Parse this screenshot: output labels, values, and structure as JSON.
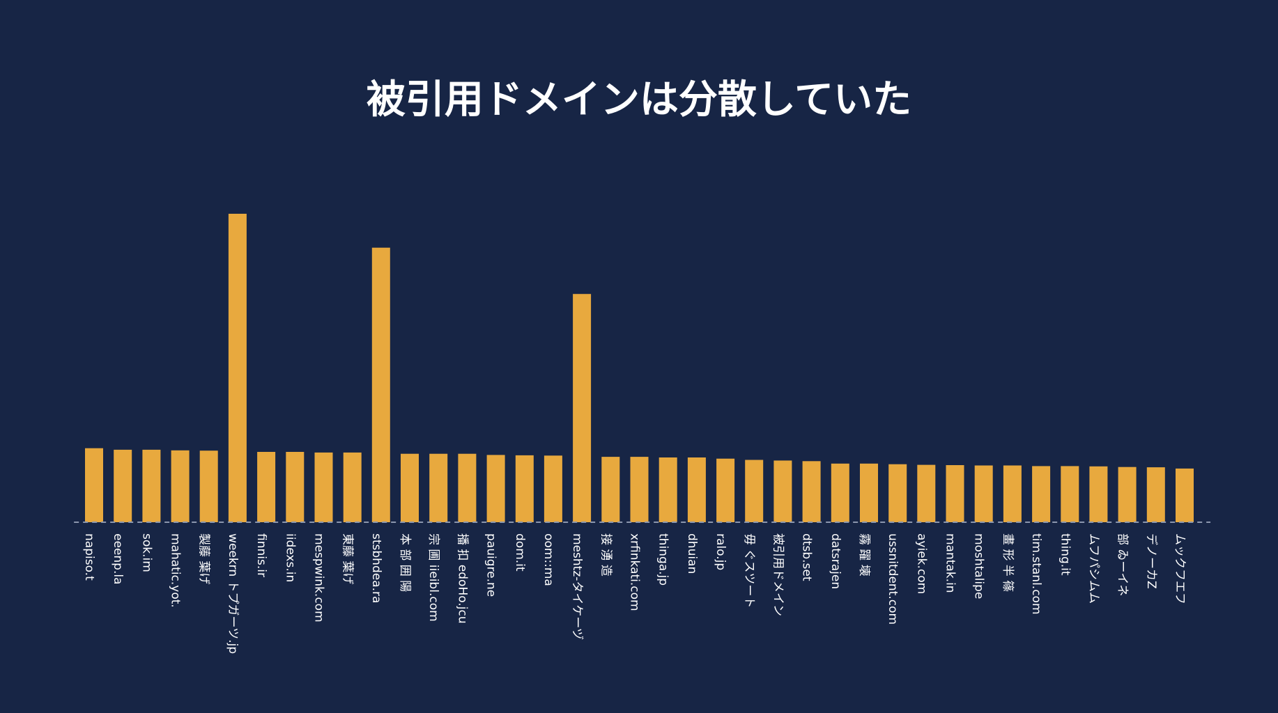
{
  "colors": {
    "background": "#172545",
    "bar": "#E8A93E",
    "text": "#FFFFFF",
    "baseline": "#8C97AE"
  },
  "chart_data": {
    "type": "bar",
    "title": "被引用ドメインは分散していた",
    "xlabel": "",
    "ylabel": "",
    "grid": false,
    "legend": "none",
    "ylim": [
      0,
      1
    ],
    "categories": [
      "napiso.t",
      "eeenp.la",
      "sok.im",
      "mahatic.yot.",
      "製藤 葉げ",
      "weekrn トプガーツ.jp",
      "finnis.ir",
      "iidexs.in",
      "mespwink.com",
      "東藤 葉げ",
      "stsbhdea.ra",
      "本 部 囲 陽",
      "宗 圃 iieibl.com",
      "播 扣 edoHo.jcu",
      "pauigre.ne",
      "dom.it",
      "oom::ma",
      "meshtz-タイケーヅ",
      "接 湧 造",
      "xrfinkati.com",
      "thinga.jp",
      "dhuian",
      "ralo.jp",
      "毋 ぐスツート",
      "被引用ドメイン",
      "dtsb.set",
      "datsrajen",
      "霧 躍 壊",
      "ussnitdent.com",
      "ayiek.com",
      "mantak.in",
      "moshtalipe",
      "畫 形 半 篠",
      "tim.stanl.com",
      "thing.it",
      "ムフパシムム",
      "部 ゐーイネ",
      "デノーカZ",
      "ムックフエフ"
    ],
    "values": [
      0.24,
      0.235,
      0.235,
      0.233,
      0.232,
      1.0,
      0.228,
      0.228,
      0.226,
      0.226,
      0.89,
      0.222,
      0.222,
      0.222,
      0.218,
      0.217,
      0.216,
      0.74,
      0.212,
      0.212,
      0.21,
      0.21,
      0.206,
      0.202,
      0.2,
      0.198,
      0.19,
      0.19,
      0.188,
      0.186,
      0.185,
      0.184,
      0.184,
      0.182,
      0.182,
      0.181,
      0.179,
      0.178,
      0.174
    ]
  }
}
